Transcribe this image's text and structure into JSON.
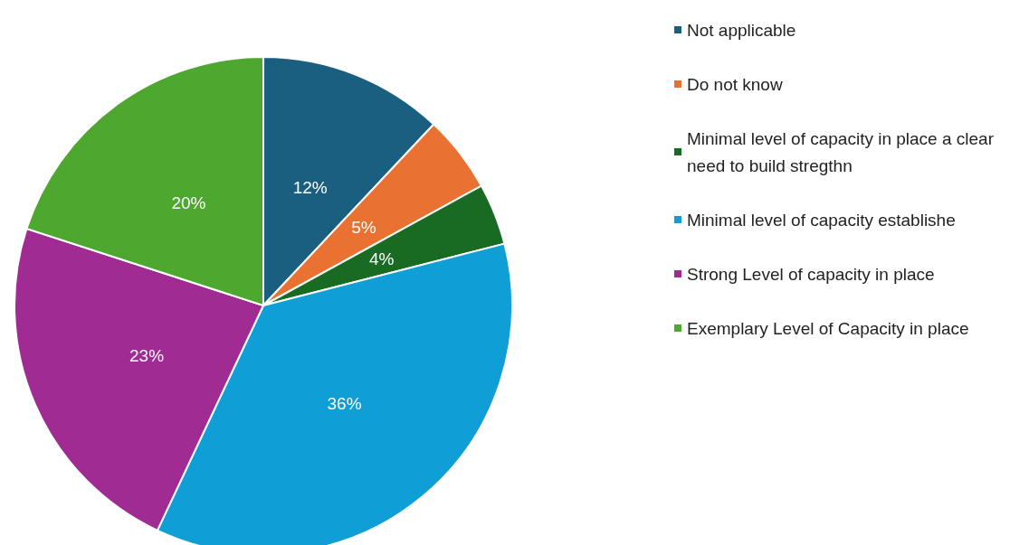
{
  "chart_data": {
    "type": "pie",
    "categories": [
      "Not applicable",
      "Do not know",
      "Minimal level of capacity in place a clear need to build stregthn",
      "Minimal level of capacity establishe",
      "Strong Level of capacity in place",
      "Exemplary Level of Capacity in place"
    ],
    "values": [
      12,
      5,
      4,
      36,
      23,
      20
    ],
    "colors": [
      "#1a5e80",
      "#e97132",
      "#196b24",
      "#0f9ed5",
      "#a02b93",
      "#4ea72e"
    ],
    "value_labels": [
      "12%",
      "5%",
      "4%",
      "36%",
      "23%",
      "20%"
    ],
    "legend": "right"
  }
}
